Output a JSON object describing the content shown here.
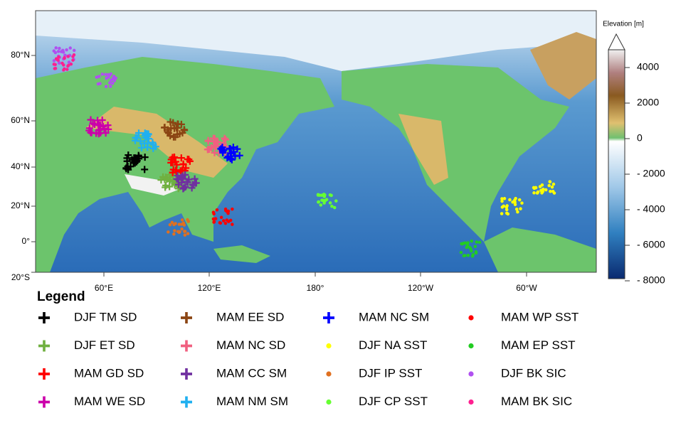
{
  "map": {
    "lat_ticks": [
      {
        "value": 80,
        "label": "80°N"
      },
      {
        "value": 60,
        "label": "60°N"
      },
      {
        "value": 40,
        "label": "40°N"
      },
      {
        "value": 20,
        "label": "20°N"
      },
      {
        "value": 0,
        "label": "0°"
      },
      {
        "value": -20,
        "label": "20°S"
      }
    ],
    "lon_ticks": [
      {
        "value": 60,
        "label": "60°E"
      },
      {
        "value": 120,
        "label": "120°E"
      },
      {
        "value": 180,
        "label": "180°"
      },
      {
        "value": -120,
        "label": "120°W"
      },
      {
        "value": -60,
        "label": "60°W"
      }
    ]
  },
  "colorbar": {
    "title": "Elevation [m]",
    "ticks": [
      4000,
      2000,
      0,
      {
        "value": -2000,
        "label": "- 2000"
      },
      {
        "value": -4000,
        "label": "- 4000"
      },
      {
        "value": -6000,
        "label": "- 6000"
      },
      {
        "value": -8000,
        "label": "- 8000"
      }
    ]
  },
  "legend": {
    "title": "Legend",
    "entries": [
      {
        "name": "DJF TM SD",
        "color": "#000000",
        "marker": "plus"
      },
      {
        "name": "DJF ET SD",
        "color": "#70b040",
        "marker": "plus"
      },
      {
        "name": "MAM GD SD",
        "color": "#ff0000",
        "marker": "plus"
      },
      {
        "name": "MAM WE SD",
        "color": "#cc00aa",
        "marker": "plus"
      },
      {
        "name": "MAM EE SD",
        "color": "#8b4513",
        "marker": "plus"
      },
      {
        "name": "MAM NC SD",
        "color": "#f06080",
        "marker": "plus"
      },
      {
        "name": "MAM CC SM",
        "color": "#7030a0",
        "marker": "plus"
      },
      {
        "name": "MAM NM SM",
        "color": "#20b0f0",
        "marker": "plus"
      },
      {
        "name": "MAM NC SM",
        "color": "#0000ff",
        "marker": "plus"
      },
      {
        "name": "DJF NA SST",
        "color": "#ffff00",
        "marker": "dot"
      },
      {
        "name": "DJF IP SST",
        "color": "#e07020",
        "marker": "dot"
      },
      {
        "name": "DJF CP SST",
        "color": "#66ff33",
        "marker": "dot"
      },
      {
        "name": "MAM WP SST",
        "color": "#ff0000",
        "marker": "dot"
      },
      {
        "name": "MAM EP SST",
        "color": "#22cc22",
        "marker": "dot"
      },
      {
        "name": "DJF BK SIC",
        "color": "#b050f0",
        "marker": "dot"
      },
      {
        "name": "MAM BK SIC",
        "color": "#ff2090",
        "marker": "dot"
      }
    ]
  }
}
